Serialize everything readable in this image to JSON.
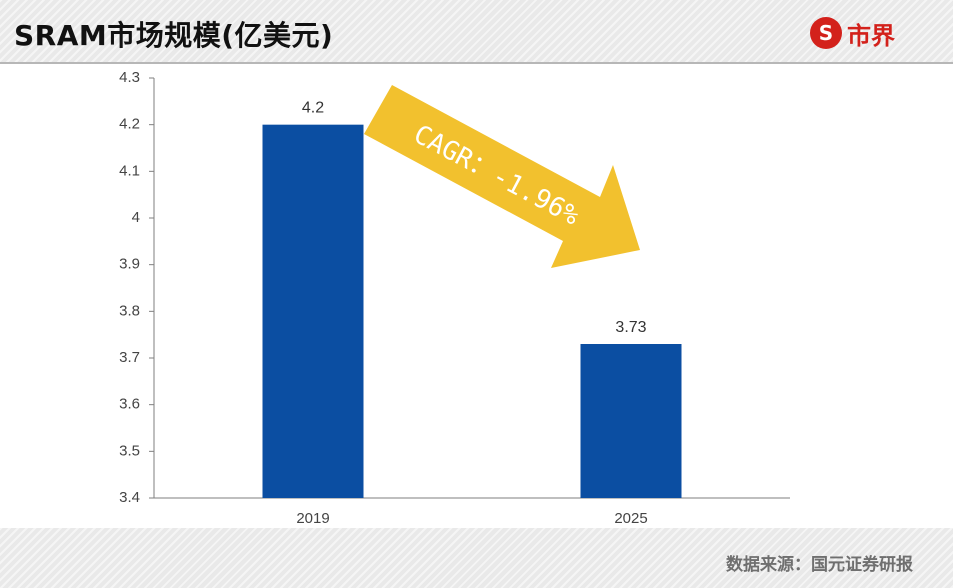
{
  "header": {
    "title": "SRAM市场规模(亿美元)",
    "logo_icon": "S",
    "logo_text": "市界"
  },
  "footer": {
    "source": "数据来源：国元证券研报"
  },
  "colors": {
    "bar": "#0b4ea2",
    "arrow": "#f2c12e",
    "logo": "#d3211b"
  },
  "chart_data": {
    "type": "bar",
    "categories": [
      "2019",
      "2025"
    ],
    "values": [
      4.2,
      3.73
    ],
    "data_labels": [
      "4.2",
      "3.73"
    ],
    "ylim": [
      3.4,
      4.3
    ],
    "yticks": [
      3.4,
      3.5,
      3.6,
      3.7,
      3.8,
      3.9,
      4,
      4.1,
      4.2,
      4.3
    ],
    "ytick_labels": [
      "3.4",
      "3.5",
      "3.6",
      "3.7",
      "3.8",
      "3.9",
      "4",
      "4.1",
      "4.2",
      "4.3"
    ],
    "grid": false,
    "legend": "none",
    "annotation": {
      "text": "CAGR：-1.96%",
      "shape": "down-right-arrow"
    }
  }
}
